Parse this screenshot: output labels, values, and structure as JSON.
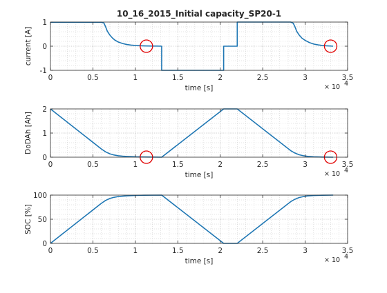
{
  "figure": {
    "line_color": "#1f77b4",
    "marker_color": "#e00000",
    "axis_color": "#262626",
    "grid_color": "#c8c8c8"
  },
  "chart_data": [
    {
      "type": "line",
      "title": "10_16_2015_Initial capacity_SP20-1",
      "xlabel": "time [s]",
      "ylabel": "current [A]",
      "x_exponent_base": "× 10",
      "x_exponent_power": "4",
      "xlim": [
        0,
        35000
      ],
      "ylim": [
        -1,
        1
      ],
      "xticks": [
        0,
        5000,
        10000,
        15000,
        20000,
        25000,
        30000,
        35000
      ],
      "xtick_labels": [
        "0",
        "0.5",
        "1",
        "1.5",
        "2",
        "2.5",
        "3",
        "3.5"
      ],
      "yticks": [
        -1,
        0,
        1
      ],
      "ytick_labels": [
        "-1",
        "0",
        "1"
      ],
      "grid": true,
      "minor_grid": true,
      "series": [
        {
          "x": [
            0,
            6000,
            6300,
            6500,
            6700,
            7000,
            7300,
            7600,
            8000,
            8500,
            9000,
            9500,
            10000,
            10500,
            11000,
            11500,
            12000,
            12500,
            13100,
            13100,
            20400,
            20400,
            22000,
            22000,
            28300,
            28600,
            28800,
            29000,
            29300,
            29600,
            30000,
            30500,
            31000,
            31500,
            32000,
            32500,
            33300
          ],
          "y": [
            0.99,
            0.99,
            0.96,
            0.8,
            0.62,
            0.46,
            0.34,
            0.25,
            0.17,
            0.11,
            0.07,
            0.045,
            0.03,
            0.02,
            0.013,
            0.009,
            0.006,
            0.004,
            0.0,
            -1.0,
            -1.0,
            0.0,
            0.0,
            1.0,
            1.0,
            0.95,
            0.8,
            0.62,
            0.46,
            0.34,
            0.24,
            0.15,
            0.09,
            0.055,
            0.03,
            0.015,
            0.0
          ]
        }
      ],
      "markers": [
        {
          "x": 11300,
          "y": 0
        },
        {
          "x": 33000,
          "y": 0
        }
      ]
    },
    {
      "type": "line",
      "title": "",
      "xlabel": "time [s]",
      "ylabel": "DoDAh [Ah]",
      "x_exponent_base": "× 10",
      "x_exponent_power": "4",
      "xlim": [
        0,
        35000
      ],
      "ylim": [
        0,
        2
      ],
      "xticks": [
        0,
        5000,
        10000,
        15000,
        20000,
        25000,
        30000,
        35000
      ],
      "xtick_labels": [
        "0",
        "0.5",
        "1",
        "1.5",
        "2",
        "2.5",
        "3",
        "3.5"
      ],
      "yticks": [
        0,
        1,
        2
      ],
      "ytick_labels": [
        "0",
        "1",
        "2"
      ],
      "grid": true,
      "minor_grid": true,
      "series": [
        {
          "x": [
            0,
            6000,
            6500,
            7000,
            7500,
            8000,
            8500,
            9000,
            10000,
            11000,
            12000,
            13100,
            20400,
            22000,
            28300,
            28800,
            29300,
            29800,
            30300,
            31000,
            32000,
            33300
          ],
          "y": [
            2.0,
            0.34,
            0.22,
            0.14,
            0.09,
            0.06,
            0.04,
            0.03,
            0.015,
            0.01,
            0.005,
            0.0,
            2.0,
            2.0,
            0.27,
            0.17,
            0.1,
            0.06,
            0.035,
            0.015,
            0.005,
            0.0
          ]
        }
      ],
      "markers": [
        {
          "x": 11300,
          "y": 0
        },
        {
          "x": 33000,
          "y": 0
        }
      ]
    },
    {
      "type": "line",
      "title": "",
      "xlabel": "time [s]",
      "ylabel": "SOC [%]",
      "x_exponent_base": "× 10",
      "x_exponent_power": "4",
      "xlim": [
        0,
        35000
      ],
      "ylim": [
        0,
        100
      ],
      "xticks": [
        0,
        5000,
        10000,
        15000,
        20000,
        25000,
        30000,
        35000
      ],
      "xtick_labels": [
        "0",
        "0.5",
        "1",
        "1.5",
        "2",
        "2.5",
        "3",
        "3.5"
      ],
      "yticks": [
        0,
        50,
        100
      ],
      "ytick_labels": [
        "0",
        "50",
        "100"
      ],
      "grid": true,
      "minor_grid": true,
      "series": [
        {
          "x": [
            0,
            6000,
            6500,
            7000,
            7500,
            8000,
            9000,
            10000,
            11000,
            13100,
            20400,
            22000,
            28300,
            28800,
            29300,
            29800,
            30300,
            31000,
            32000,
            33300
          ],
          "y": [
            0,
            83,
            89,
            93,
            95.5,
            97,
            98.5,
            99.3,
            99.7,
            100,
            0,
            0,
            86.5,
            91.5,
            95,
            97,
            98.3,
            99.2,
            99.7,
            100
          ]
        }
      ],
      "markers": []
    }
  ]
}
